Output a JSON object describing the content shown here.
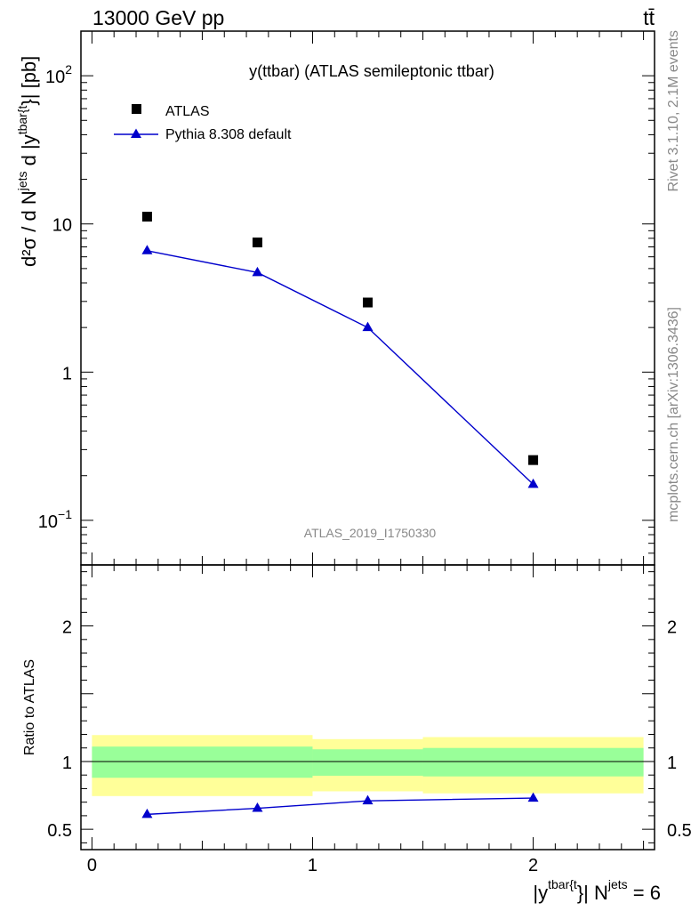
{
  "header": {
    "left": "13000 GeV pp",
    "right": "tt̄"
  },
  "side_text": {
    "top": "Rivet 3.1.10,  2.1M events",
    "bottom": "mcplots.cern.ch [arXiv:1306.3436]"
  },
  "watermark": "ATLAS_2019_I1750330",
  "colors": {
    "data": "#000000",
    "mc": "#0000cc",
    "band_inner": "#99ff99",
    "band_outer": "#ffff99"
  },
  "chart_data": [
    {
      "type": "scatter",
      "title": "y(ttbar) (ATLAS semileptonic ttbar)",
      "ylabel": {
        "main": "d²σ / d N",
        "sup1": "jets",
        "mid": " d |y",
        "sup2": "tbar{t",
        "end": "}| [pb]"
      },
      "yscale": "log",
      "ylim": [
        0.05,
        200
      ],
      "yticks": [
        {
          "value": 100,
          "base": "10",
          "exp": "2"
        },
        {
          "value": 10,
          "base": "10",
          "exp": ""
        },
        {
          "value": 1,
          "base": "1",
          "exp": ""
        },
        {
          "value": 0.1,
          "base": "10",
          "exp": "−1"
        }
      ],
      "xlim": [
        -0.05,
        2.55
      ],
      "legend_position": "top-left",
      "series": [
        {
          "name": "ATLAS",
          "marker": "square",
          "x": [
            0.25,
            0.75,
            1.25,
            2.0
          ],
          "y": [
            11.2,
            7.5,
            2.95,
            0.255
          ]
        },
        {
          "name": "Pythia 8.308 default",
          "marker": "triangle",
          "line": true,
          "x": [
            0.25,
            0.75,
            1.25,
            2.0
          ],
          "y": [
            6.6,
            4.7,
            2.0,
            0.175
          ]
        }
      ]
    },
    {
      "type": "line",
      "ylabel": "Ratio to ATLAS",
      "ylim": [
        0.35,
        2.45
      ],
      "yticks": [
        0.5,
        1,
        2
      ],
      "ytick_labels": [
        "0.5",
        "1",
        "2"
      ],
      "xlim": [
        -0.05,
        2.55
      ],
      "xticks": [
        0,
        1,
        2
      ],
      "xtick_labels": [
        "0",
        "1",
        "2"
      ],
      "xlabel": {
        "main": "|y",
        "sup1": "tbar{t",
        "mid": "}| N",
        "sup2": "jets",
        "end": " = 6"
      },
      "bands": [
        {
          "x0": 0.0,
          "x1": 1.0,
          "inner": [
            0.88,
            1.11
          ],
          "outer": [
            0.745,
            1.195
          ]
        },
        {
          "x0": 1.0,
          "x1": 1.5,
          "inner": [
            0.895,
            1.09
          ],
          "outer": [
            0.78,
            1.165
          ]
        },
        {
          "x0": 1.5,
          "x1": 2.5,
          "inner": [
            0.89,
            1.1
          ],
          "outer": [
            0.765,
            1.18
          ]
        }
      ],
      "series": [
        {
          "name": "Pythia 8.308 default",
          "x": [
            0.25,
            0.75,
            1.25,
            2.0
          ],
          "y": [
            0.61,
            0.655,
            0.71,
            0.73
          ],
          "yerr": [
            0.01,
            0.01,
            0.01,
            0.025
          ]
        }
      ]
    }
  ]
}
